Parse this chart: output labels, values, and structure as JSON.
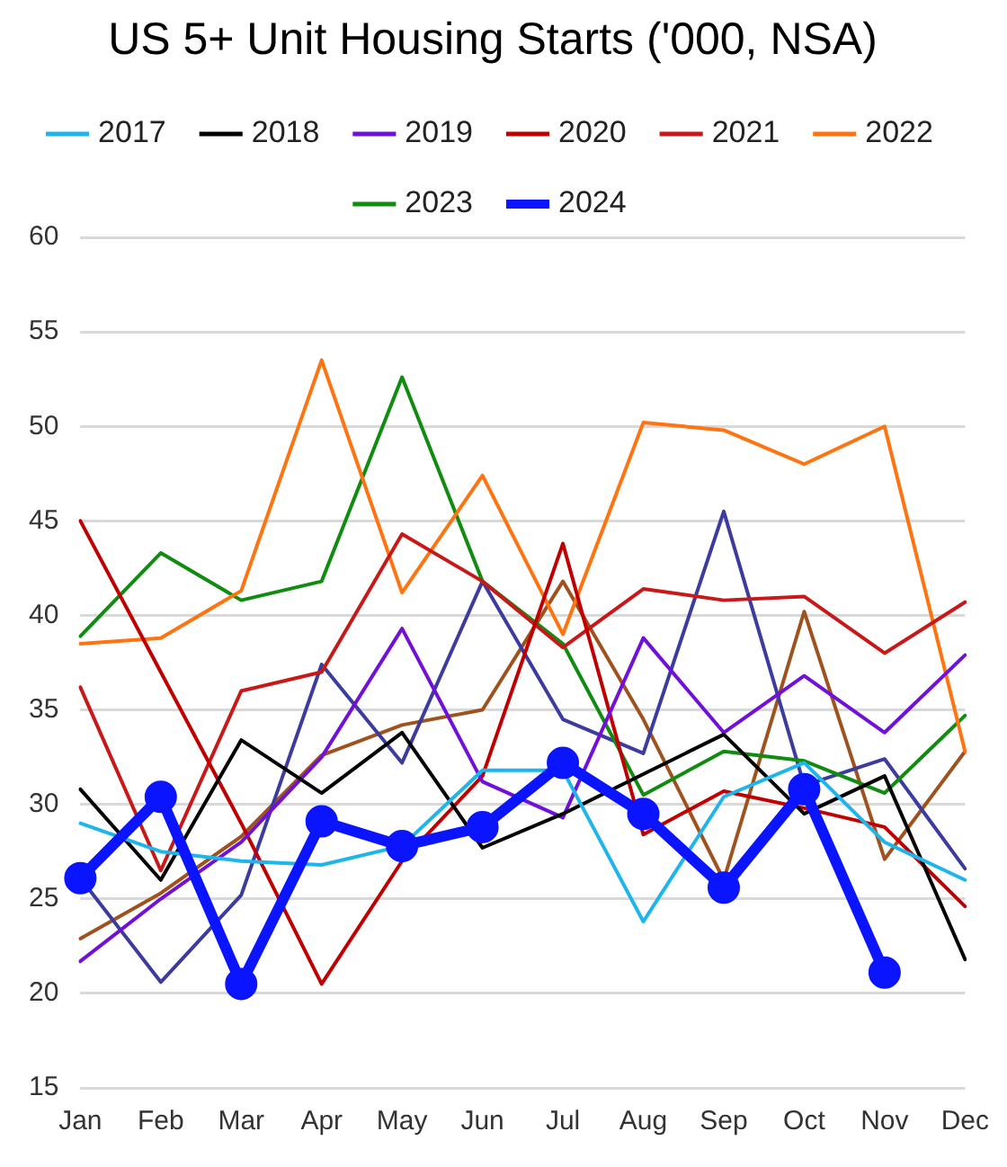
{
  "chart_data": {
    "type": "line",
    "title": "US 5+ Unit Housing Starts ('000, NSA)",
    "categories": [
      "Jan",
      "Feb",
      "Mar",
      "Apr",
      "May",
      "Jun",
      "Jul",
      "Aug",
      "Sep",
      "Oct",
      "Nov",
      "Dec"
    ],
    "ylim": [
      15,
      60
    ],
    "yticks": [
      15,
      20,
      25,
      30,
      35,
      40,
      45,
      50,
      55,
      60
    ],
    "grid": "y",
    "legend": "top",
    "marker": "none",
    "line_style": "solid",
    "series": [
      {
        "name": "2017",
        "color": "#1eb4ec",
        "values": [
          29,
          27.5,
          27,
          26.8,
          27.8,
          31.8,
          31.8,
          23.8,
          30.4,
          32.2,
          28,
          26
        ]
      },
      {
        "name": "2018",
        "color": "#000000",
        "values": [
          30.8,
          26,
          33.4,
          30.6,
          33.8,
          27.7,
          29.5,
          31.6,
          33.7,
          29.5,
          31.5,
          21.8
        ]
      },
      {
        "name": "2019",
        "color": "#7010d8",
        "values": [
          21.7,
          25,
          28,
          32.5,
          39.3,
          31.2,
          29.3,
          38.8,
          33.8,
          36.8,
          33.8,
          37.9
        ]
      },
      {
        "name": "2020",
        "color": "#c00000",
        "values": [
          45,
          37,
          29,
          20.5,
          27,
          31.5,
          43.8,
          28.4,
          30.7,
          29.8,
          28.8,
          24.6
        ]
      },
      {
        "name": "2021",
        "color": "#c81818",
        "values": [
          36.2,
          26.5,
          36,
          37,
          44.3,
          41.8,
          38.3,
          41.4,
          40.8,
          41,
          38,
          40.7
        ]
      },
      {
        "name": "2022",
        "color": "#ff7410",
        "values": [
          38.5,
          38.8,
          41.3,
          53.5,
          41.2,
          47.4,
          39,
          50.2,
          49.8,
          48,
          50,
          32.8
        ]
      },
      {
        "name": "2023",
        "color": "#108c10",
        "values": [
          38.9,
          43.3,
          40.8,
          41.8,
          52.6,
          41.8,
          38.5,
          30.5,
          32.8,
          32.3,
          30.6,
          34.7
        ]
      },
      {
        "name": "2024",
        "color": "#0a14ff",
        "marker": "circle",
        "values": [
          26.1,
          30.4,
          20.5,
          29.1,
          27.8,
          28.8,
          32.2,
          29.5,
          25.6,
          30.8,
          21.1,
          null
        ]
      },
      {
        "color": "#3c3ca0",
        "values": [
          26.1,
          20.6,
          25.2,
          37.4,
          32.2,
          41.8,
          34.5,
          32.7,
          45.5,
          31,
          32.4,
          26.6
        ]
      },
      {
        "color": "#a0521e",
        "values": [
          22.9,
          25.3,
          28.3,
          32.6,
          34.2,
          35,
          41.8,
          34.5,
          26,
          40.2,
          27.1,
          32.8
        ]
      }
    ]
  }
}
